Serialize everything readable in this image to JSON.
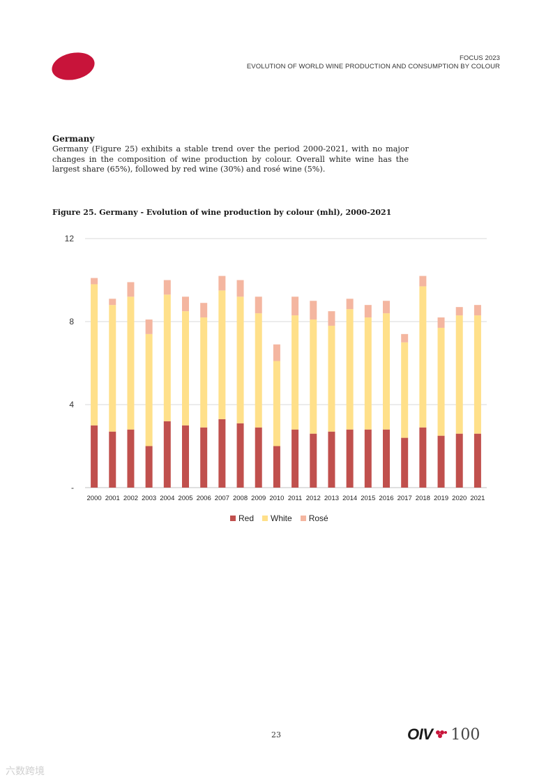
{
  "header": {
    "line1": "FOCUS 2023",
    "line2": "EVOLUTION OF WORLD WINE PRODUCTION AND CONSUMPTION BY COLOUR"
  },
  "section": {
    "title": "Germany",
    "body": "Germany (Figure 25) exhibits a stable trend over the period 2000-2021, with no major changes in the composition of wine production by colour. Overall white wine has the largest share (65%), followed by red wine (30%) and rosé wine (5%)."
  },
  "figure": {
    "title": "Figure 25. Germany - Evolution of wine production by colour (mhl), 2000-2021"
  },
  "chart_data": {
    "type": "bar",
    "stacked": true,
    "categories": [
      "2000",
      "2001",
      "2002",
      "2003",
      "2004",
      "2005",
      "2006",
      "2007",
      "2008",
      "2009",
      "2010",
      "2011",
      "2012",
      "2013",
      "2014",
      "2015",
      "2016",
      "2017",
      "2018",
      "2019",
      "2020",
      "2021"
    ],
    "series": [
      {
        "name": "Red",
        "color": "#c0504d",
        "values": [
          3.0,
          2.7,
          2.8,
          2.0,
          3.2,
          3.0,
          2.9,
          3.3,
          3.1,
          2.9,
          2.0,
          2.8,
          2.6,
          2.7,
          2.8,
          2.8,
          2.8,
          2.4,
          2.9,
          2.5,
          2.6,
          2.6
        ]
      },
      {
        "name": "White",
        "color": "#ffe08a",
        "values": [
          6.8,
          6.1,
          6.4,
          5.4,
          6.1,
          5.5,
          5.3,
          6.2,
          6.1,
          5.5,
          4.1,
          5.5,
          5.5,
          5.1,
          5.8,
          5.4,
          5.6,
          4.6,
          6.8,
          5.2,
          5.7,
          5.7
        ]
      },
      {
        "name": "Rosé",
        "color": "#f4b6a0",
        "values": [
          0.3,
          0.3,
          0.7,
          0.7,
          0.7,
          0.7,
          0.7,
          0.7,
          0.8,
          0.8,
          0.8,
          0.9,
          0.9,
          0.7,
          0.5,
          0.6,
          0.6,
          0.4,
          0.5,
          0.5,
          0.4,
          0.5
        ]
      }
    ],
    "yticks": [
      "-",
      "4",
      "8",
      "12"
    ],
    "ylim": [
      0,
      12
    ],
    "grid": true,
    "legend": "bottom"
  },
  "footer": {
    "page_number": "23",
    "logo_text": "OIV",
    "logo_number": "100",
    "watermark": "六数跨境"
  }
}
